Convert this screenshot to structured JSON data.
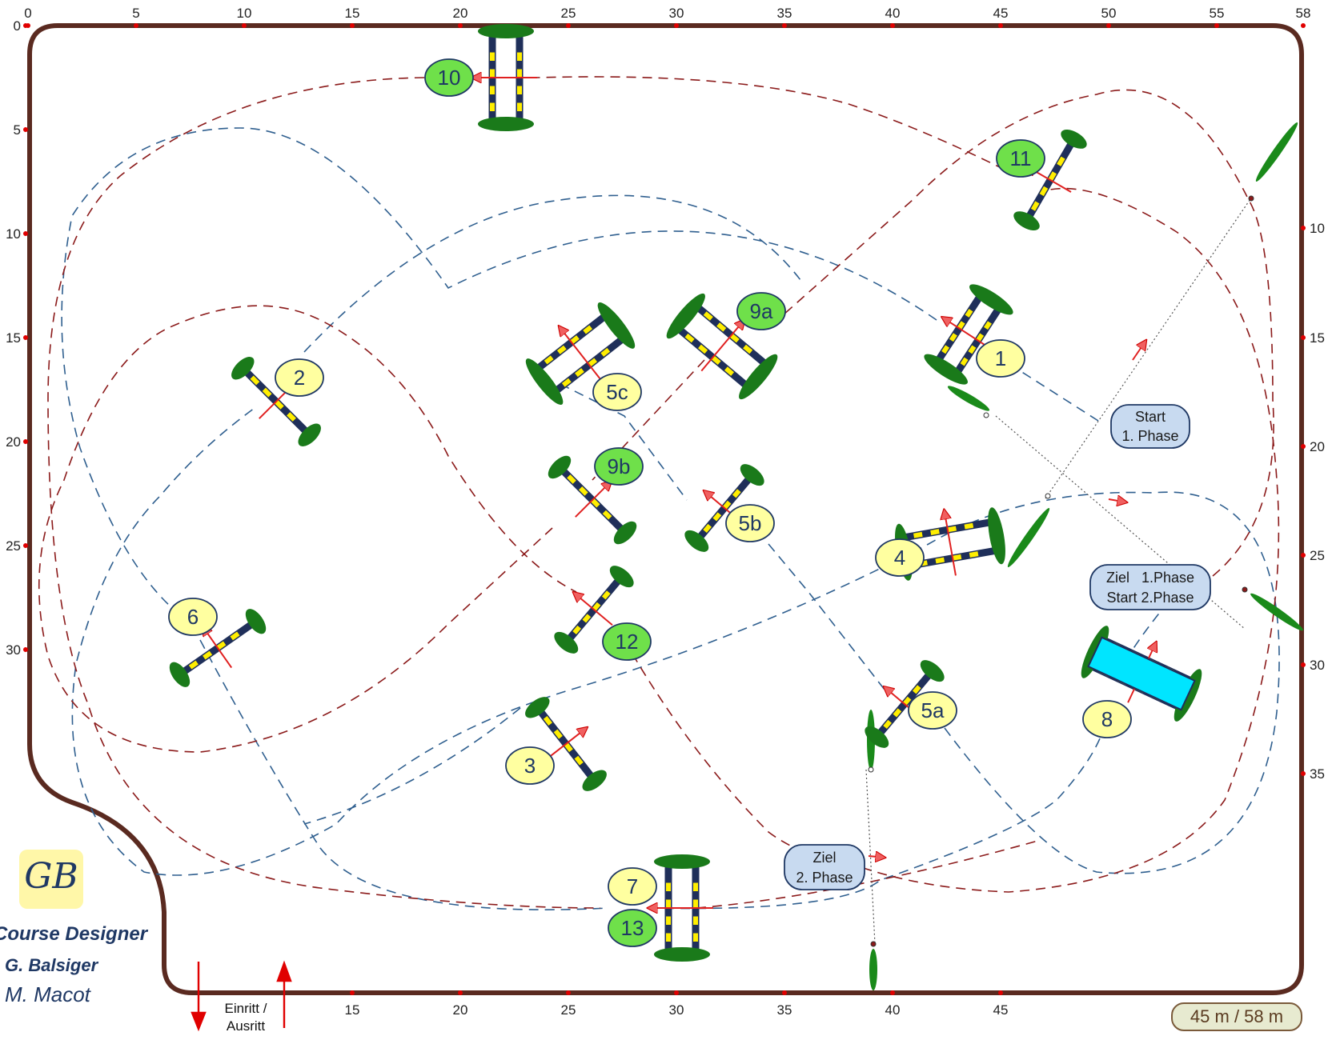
{
  "arena": {
    "size_label": "45 m / 58 m",
    "top_ticks": [
      "0",
      "5",
      "10",
      "15",
      "20",
      "25",
      "30",
      "35",
      "40",
      "45",
      "50",
      "55",
      "58"
    ],
    "bottom_ticks": [
      "15",
      "20",
      "25",
      "30",
      "35",
      "40",
      "45"
    ],
    "left_ticks": [
      "0",
      "5",
      "10",
      "15",
      "20",
      "25",
      "30"
    ],
    "right_ticks": [
      "10",
      "15",
      "20",
      "25",
      "30",
      "35"
    ],
    "entry_label_1": "Einritt /",
    "entry_label_2": "Ausritt"
  },
  "obstacles": [
    {
      "label": "1",
      "color": "yellow"
    },
    {
      "label": "2",
      "color": "yellow"
    },
    {
      "label": "3",
      "color": "yellow"
    },
    {
      "label": "4",
      "color": "yellow"
    },
    {
      "label": "5a",
      "color": "yellow"
    },
    {
      "label": "5b",
      "color": "yellow"
    },
    {
      "label": "5c",
      "color": "yellow"
    },
    {
      "label": "6",
      "color": "yellow"
    },
    {
      "label": "7",
      "color": "yellow"
    },
    {
      "label": "8",
      "color": "yellow"
    },
    {
      "label": "9a",
      "color": "green"
    },
    {
      "label": "9b",
      "color": "green"
    },
    {
      "label": "10",
      "color": "green"
    },
    {
      "label": "11",
      "color": "green"
    },
    {
      "label": "12",
      "color": "green"
    },
    {
      "label": "13",
      "color": "green"
    }
  ],
  "markers": {
    "start_phase1_line1": "Start",
    "start_phase1_line2": "1. Phase",
    "finish1_start2_line1": "Ziel   1.Phase",
    "finish1_start2_line2": "Start 2.Phase",
    "finish_phase2_line1": "Ziel",
    "finish_phase2_line2": "2. Phase"
  },
  "credits": {
    "logo": "GB",
    "title": "Course Designer",
    "name1": "G. Balsiger",
    "name2": "M. Macot"
  },
  "colors": {
    "border": "#5a2a20",
    "phase1_path": "#1f5a8a",
    "phase2_path": "#8b1a1a",
    "label_yellow": "#ffffa0",
    "label_green": "#6fe04a",
    "label_stroke": "#1f3864",
    "hedge": "#1a7a1a",
    "pole_dark": "#1f2f5a",
    "pole_light": "#ffee00",
    "arrow": "#e02020",
    "water": "#00e5ff",
    "marker_box": "#c8daf0"
  }
}
